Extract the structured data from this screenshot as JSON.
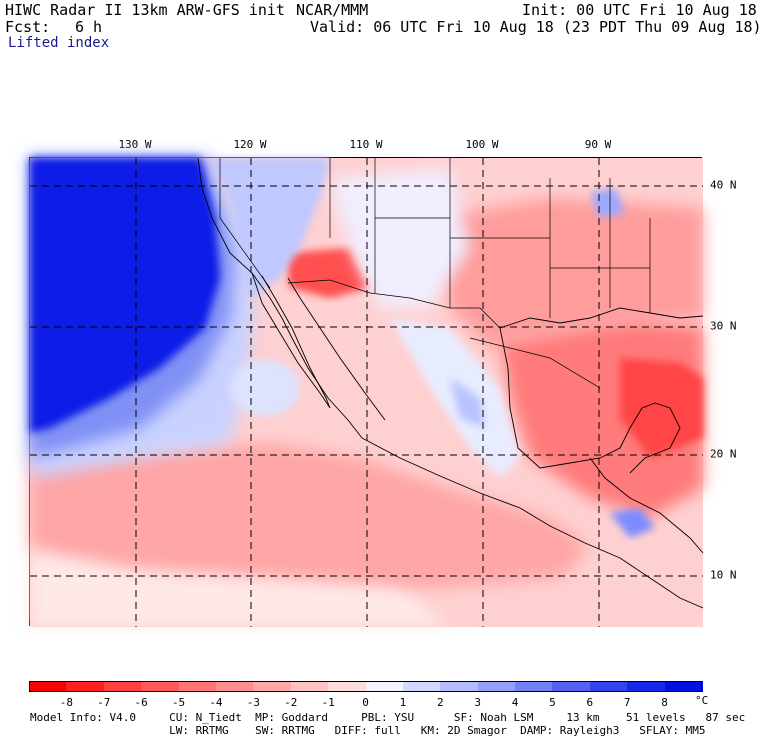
{
  "header": {
    "title_left": "HIWC Radar II 13km ARW-GFS init",
    "org": "NCAR/MMM",
    "init": "Init: 00 UTC Fri 10 Aug 18",
    "fcst_label": "Fcst:",
    "fcst_value": "6 h",
    "valid": "Valid: 06 UTC Fri 10 Aug 18 (23 PDT Thu 09 Aug 18)",
    "field": "Lifted index"
  },
  "map": {
    "lon_labels": [
      "130 W",
      "120 W",
      "110 W",
      "100 W",
      "90 W"
    ],
    "lat_labels": [
      "40 N",
      "30 N",
      "20 N",
      "10 N"
    ],
    "colors": {
      "ocean_stable": "#0a1ee6",
      "stable_light": "#9fb0f2",
      "neutral": "#f2f2fb",
      "unstable_light": "#ffc6c6",
      "unstable_mid": "#ff8c8c",
      "unstable_strong": "#ff3c3c"
    }
  },
  "colorbar": {
    "ticks": [
      "-8",
      "-7",
      "-6",
      "-5",
      "-4",
      "-3",
      "-2",
      "-1",
      "0",
      "1",
      "2",
      "3",
      "4",
      "5",
      "6",
      "7",
      "8"
    ],
    "unit": "°C",
    "colors": [
      "#ff0000",
      "#ff2020",
      "#ff4040",
      "#ff5a5a",
      "#ff7474",
      "#ff8e8e",
      "#ffa8a8",
      "#ffc2c2",
      "#ffdcdc",
      "#f4f4ff",
      "#d2d8ff",
      "#b4bcff",
      "#949efb",
      "#7480f5",
      "#5462f0",
      "#3444ec",
      "#1428e8",
      "#0010e0"
    ]
  },
  "footer": {
    "line1": "Model Info: V4.0     CU: N_Tiedt  MP: Goddard     PBL: YSU      SF: Noah LSM     13 km    51 levels   87 sec",
    "line2": "                     LW: RRTMG    SW: RRTMG   DIFF: full   KM: 2D Smagor  DAMP: Rayleigh3   SFLAY: MM5"
  }
}
